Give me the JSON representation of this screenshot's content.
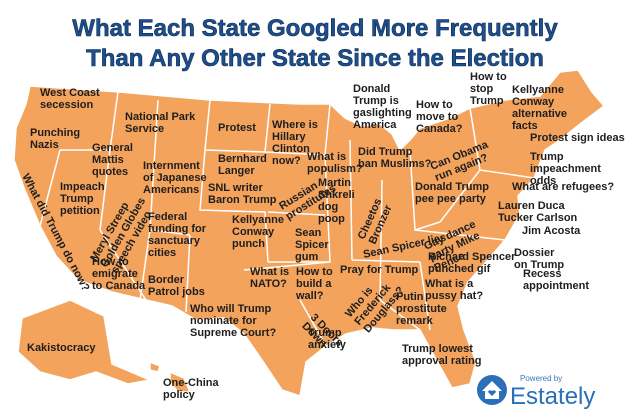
{
  "title": {
    "lines": [
      "What Each State Googled More Frequently",
      "Than Any Other State Since the Election"
    ]
  },
  "labels": [
    {
      "lines": [
        "West Coast",
        "secession"
      ]
    },
    {
      "lines": [
        "Punching",
        "Nazis"
      ]
    },
    {
      "lines": [
        "National Park",
        "Service"
      ]
    },
    {
      "lines": [
        "General",
        "Mattis",
        "quotes"
      ]
    },
    {
      "lines": [
        "Protest"
      ]
    },
    {
      "lines": [
        "Where is",
        "Hillary",
        "Clinton",
        "now?"
      ]
    },
    {
      "lines": [
        "Bernhard",
        "Langer"
      ]
    },
    {
      "lines": [
        "Internment",
        "of Japanese",
        "Americans"
      ]
    },
    {
      "lines": [
        "What is",
        "populism?"
      ]
    },
    {
      "lines": [
        "Impeach",
        "Trump",
        "petition"
      ]
    },
    {
      "lines": [
        "What did Trump do now?"
      ]
    },
    {
      "lines": [
        "Meryl Streep",
        "Golden Globes",
        "speech video"
      ]
    },
    {
      "lines": [
        "SNL writer",
        "Baron Trump"
      ]
    },
    {
      "lines": [
        "Russian",
        "prostitutes"
      ]
    },
    {
      "lines": [
        "Federal",
        "funding for",
        "sanctuary",
        "cities"
      ]
    },
    {
      "lines": [
        "Martin",
        "Shkreli",
        "dog",
        "poop"
      ]
    },
    {
      "lines": [
        "Cheetos",
        "Bronzer"
      ]
    },
    {
      "lines": [
        "Did Trump",
        "ban Muslims?"
      ]
    },
    {
      "lines": [
        "Donald",
        "Trump is",
        "gaslighting",
        "America"
      ]
    },
    {
      "lines": [
        "How to",
        "move to",
        "Canada?"
      ]
    },
    {
      "lines": [
        "How to",
        "stop",
        "Trump"
      ]
    },
    {
      "lines": [
        "Kellyanne",
        "Conway",
        "alternative",
        "facts"
      ]
    },
    {
      "lines": [
        "Protest sign ideas"
      ]
    },
    {
      "lines": [
        "Can Obama",
        "run again?"
      ]
    },
    {
      "lines": [
        "Trump",
        "impeachment",
        "odds"
      ]
    },
    {
      "lines": [
        "What are refugees?"
      ]
    },
    {
      "lines": [
        "Donald Trump",
        "pee pee party"
      ]
    },
    {
      "lines": [
        "Lauren Duca",
        "Tucker Carlson"
      ]
    },
    {
      "lines": [
        "Jim Acosta"
      ]
    },
    {
      "lines": [
        "Dossier",
        "on Trump"
      ]
    },
    {
      "lines": [
        "Gay dance",
        "party Mike",
        "Pence"
      ]
    },
    {
      "lines": [
        "Sean Spicer lies"
      ]
    },
    {
      "lines": [
        "Kellyanne",
        "Conway",
        "punch"
      ]
    },
    {
      "lines": [
        "Sean",
        "Spicer",
        "gum"
      ]
    },
    {
      "lines": [
        "Richard Spencer",
        "punched gif"
      ]
    },
    {
      "lines": [
        "Pray for Trump"
      ]
    },
    {
      "lines": [
        "How to",
        "emigrate",
        "to Canada"
      ]
    },
    {
      "lines": [
        "What is",
        "NATO?"
      ]
    },
    {
      "lines": [
        "How to",
        "build a",
        "wall?"
      ]
    },
    {
      "lines": [
        "Border",
        "Patrol jobs"
      ]
    },
    {
      "lines": [
        "Who is",
        "Frederick",
        "Douglass?"
      ]
    },
    {
      "lines": [
        "What is a",
        "pussy hat?"
      ]
    },
    {
      "lines": [
        "Recess",
        "appointment"
      ]
    },
    {
      "lines": [
        "Putin",
        "prostitute",
        "remark"
      ]
    },
    {
      "lines": [
        "3 Doors",
        "Down"
      ]
    },
    {
      "lines": [
        "Who will Trump",
        "nominate for",
        "Supreme Court?"
      ]
    },
    {
      "lines": [
        "Trump",
        "anxiety"
      ]
    },
    {
      "lines": [
        "Kakistocracy"
      ]
    },
    {
      "lines": [
        "Trump lowest",
        "approval rating"
      ]
    },
    {
      "lines": [
        "One-China",
        "policy"
      ]
    }
  ],
  "logo": {
    "tagline": "Powered by",
    "brand": "Estately"
  }
}
